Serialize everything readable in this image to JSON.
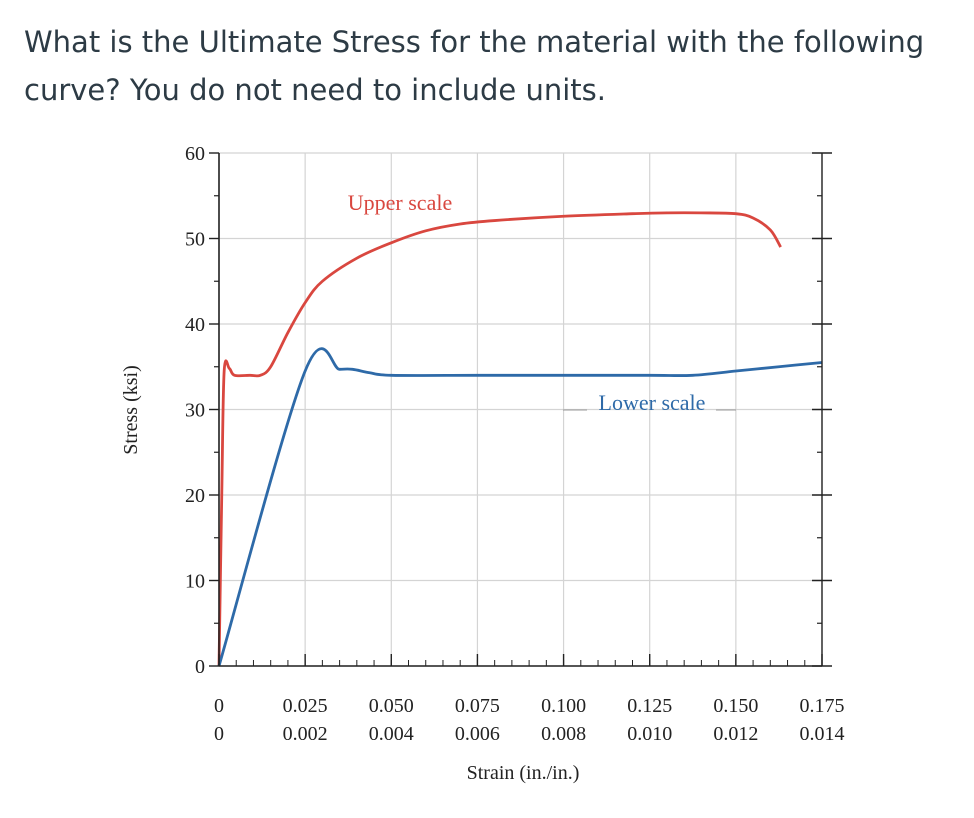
{
  "question": {
    "line1": "What is the Ultimate Stress for the material with the following",
    "line2": "curve?  You do not need to include units."
  },
  "chart_data": {
    "type": "line",
    "xlabel": "Strain (in./in.)",
    "ylabel": "Stress (ksi)",
    "ylim": [
      0,
      60
    ],
    "yticks": [
      0,
      10,
      20,
      30,
      40,
      50,
      60
    ],
    "grid": true,
    "x_upper_ticks": [
      "0",
      "0.025",
      "0.050",
      "0.075",
      "0.100",
      "0.125",
      "0.150",
      "0.175"
    ],
    "x_lower_ticks": [
      "0",
      "0.002",
      "0.004",
      "0.006",
      "0.008",
      "0.010",
      "0.012",
      "0.014"
    ],
    "series": [
      {
        "name": "Upper scale",
        "color": "#d9473f",
        "xlim": [
          0,
          0.175
        ],
        "x": [
          0,
          0.0008,
          0.0015,
          0.003,
          0.0045,
          0.009,
          0.012,
          0.015,
          0.02,
          0.025,
          0.03,
          0.04,
          0.05,
          0.06,
          0.07,
          0.08,
          0.1,
          0.12,
          0.13,
          0.14,
          0.15,
          0.155,
          0.16,
          0.163
        ],
        "y": [
          0,
          20,
          34.5,
          34.8,
          34,
          34,
          34,
          35,
          39,
          42.5,
          45,
          47.7,
          49.5,
          50.9,
          51.7,
          52.1,
          52.6,
          52.9,
          53,
          53,
          52.9,
          52.4,
          51,
          49
        ]
      },
      {
        "name": "Lower scale",
        "color": "#2e6aa8",
        "xlim": [
          0,
          0.014
        ],
        "x": [
          0,
          0.002,
          0.0028,
          0.0031,
          0.0035,
          0.004,
          0.006,
          0.008,
          0.01,
          0.011,
          0.012,
          0.013,
          0.014
        ],
        "y": [
          0,
          34.5,
          34.7,
          34.7,
          34.3,
          34,
          34,
          34,
          34,
          34,
          34.5,
          35,
          35.5
        ]
      }
    ],
    "annotations": [
      {
        "text": "Upper scale",
        "series": 0
      },
      {
        "text": "Lower scale",
        "series": 1
      }
    ]
  }
}
